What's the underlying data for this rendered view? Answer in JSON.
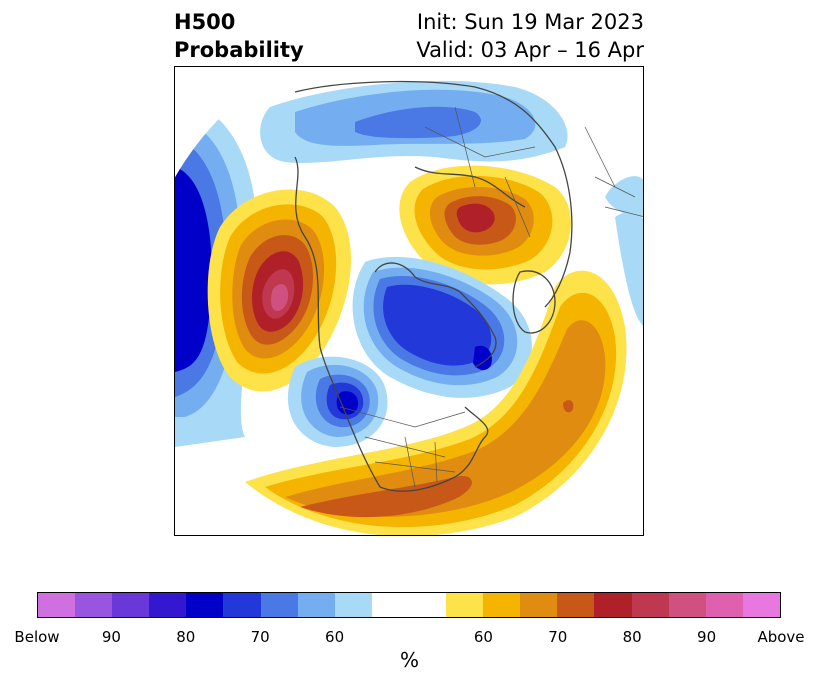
{
  "title": {
    "left_line1": "H500",
    "left_line2": "Probability",
    "right_line1": "Init: Sun 19 Mar 2023",
    "right_line2": "Valid: 03 Apr – 16 Apr"
  },
  "colorbar": {
    "colors": [
      "#d070e0",
      "#9a55e0",
      "#6a38d8",
      "#3418d0",
      "#0000c8",
      "#2238d8",
      "#4a78e4",
      "#74aef0",
      "#a8daf8",
      "#ffffff",
      "#ffffff",
      "#fde24a",
      "#f4b400",
      "#e08c10",
      "#c85818",
      "#b02028",
      "#c03850",
      "#d05080",
      "#e060b0",
      "#e878e0"
    ],
    "tick_labels": [
      "Below",
      "90",
      "80",
      "70",
      "60",
      "60",
      "70",
      "80",
      "90",
      "Above"
    ],
    "units": "%"
  },
  "map": {
    "palette": {
      "blue_light": "#a8daf8",
      "blue_mid": "#74aef0",
      "blue_med": "#4a78e4",
      "blue_dark": "#2238d8",
      "blue_deep": "#0000c8",
      "yellow": "#fde24a",
      "gold": "#f4b400",
      "orange": "#e08c10",
      "rust": "#c85818",
      "red": "#b02028",
      "rose": "#c03850",
      "pink": "#d05080",
      "coast": "#444444"
    }
  }
}
